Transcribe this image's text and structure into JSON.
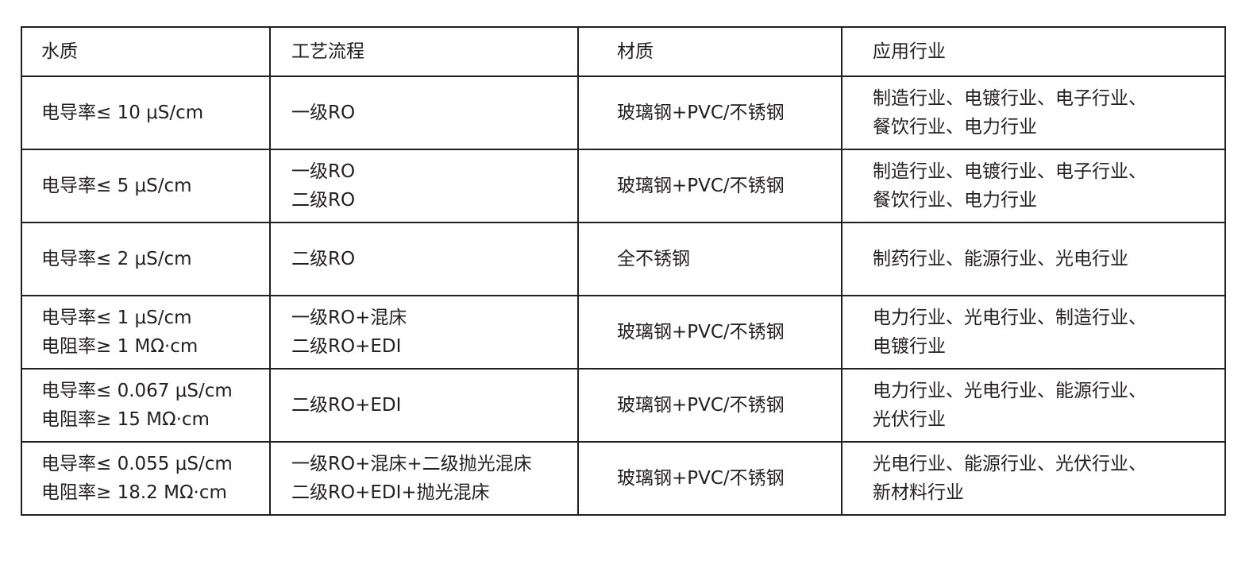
{
  "table": {
    "headers": [
      "水质",
      "工艺流程",
      "材质",
      "应用行业"
    ],
    "rows": [
      [
        [
          "电导率≤ 10 μS/cm"
        ],
        [
          "一级RO"
        ],
        [
          "玻璃钢+PVC/不锈钢"
        ],
        [
          "制造行业、电镀行业、电子行业、",
          "餐饮行业、电力行业"
        ]
      ],
      [
        [
          "电导率≤ 5 μS/cm"
        ],
        [
          "一级RO",
          "二级RO"
        ],
        [
          "玻璃钢+PVC/不锈钢"
        ],
        [
          "制造行业、电镀行业、电子行业、",
          "餐饮行业、电力行业"
        ]
      ],
      [
        [
          "电导率≤ 2 μS/cm"
        ],
        [
          "二级RO"
        ],
        [
          "全不锈钢"
        ],
        [
          "制药行业、能源行业、光电行业"
        ]
      ],
      [
        [
          "电导率≤ 1 μS/cm",
          "电阻率≥ 1 MΩ·cm"
        ],
        [
          "一级RO+混床",
          "二级RO+EDI"
        ],
        [
          "玻璃钢+PVC/不锈钢"
        ],
        [
          "电力行业、光电行业、制造行业、",
          "电镀行业"
        ]
      ],
      [
        [
          "电导率≤ 0.067 μS/cm",
          "电阻率≥ 15 MΩ·cm"
        ],
        [
          "二级RO+EDI"
        ],
        [
          "玻璃钢+PVC/不锈钢"
        ],
        [
          "电力行业、光电行业、能源行业、",
          "光伏行业"
        ]
      ],
      [
        [
          "电导率≤ 0.055 μS/cm",
          "电阻率≥ 18.2 MΩ·cm"
        ],
        [
          "一级RO+混床+二级抛光混床",
          "二级RO+EDI+抛光混床"
        ],
        [
          "玻璃钢+PVC/不锈钢"
        ],
        [
          "光电行业、能源行业、光伏行业、",
          "新材料行业"
        ]
      ]
    ]
  }
}
